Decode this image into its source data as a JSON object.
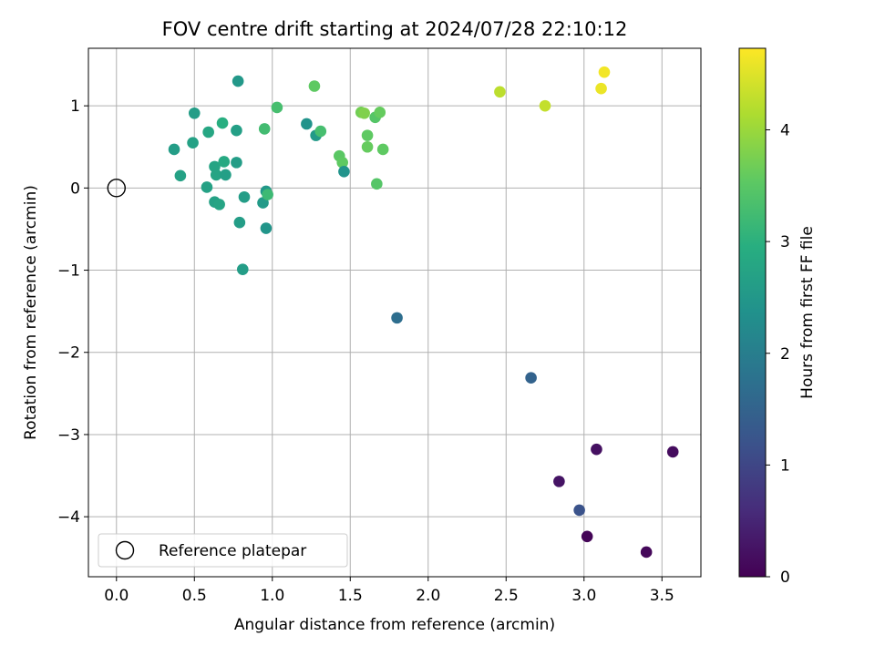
{
  "chart_data": {
    "type": "scatter",
    "title": "FOV centre drift starting at 2024/07/28 22:10:12",
    "xlabel": "Angular distance from reference (arcmin)",
    "ylabel": "Rotation from reference (arcmin)",
    "xlim": [
      -0.18,
      3.75
    ],
    "ylim": [
      -4.73,
      1.7
    ],
    "x_ticks": [
      0.0,
      0.5,
      1.0,
      1.5,
      2.0,
      2.5,
      3.0,
      3.5
    ],
    "x_tick_labels": [
      "0.0",
      "0.5",
      "1.0",
      "1.5",
      "2.0",
      "2.5",
      "3.0",
      "3.5"
    ],
    "y_ticks": [
      1,
      0,
      -1,
      -2,
      -3,
      -4
    ],
    "y_tick_labels": [
      "1",
      "0",
      "−1",
      "−2",
      "−3",
      "−4"
    ],
    "grid": true,
    "legend": {
      "position": "lower-left",
      "entries": [
        "Reference platepar"
      ]
    },
    "reference_point": {
      "x": 0,
      "y": 0,
      "marker": "open-circle"
    },
    "colorbar": {
      "label": "Hours from first FF file",
      "colormap": "viridis",
      "range": [
        0,
        4.73
      ],
      "ticks": [
        0,
        1,
        2,
        3,
        4
      ],
      "tick_labels": [
        "0",
        "1",
        "2",
        "3",
        "4"
      ]
    },
    "points": [
      {
        "x": 3.02,
        "y": -4.24,
        "c": 0.05
      },
      {
        "x": 3.4,
        "y": -4.43,
        "c": 0.1
      },
      {
        "x": 3.57,
        "y": -3.21,
        "c": 0.15
      },
      {
        "x": 3.08,
        "y": -3.18,
        "c": 0.2
      },
      {
        "x": 2.84,
        "y": -3.57,
        "c": 0.25
      },
      {
        "x": 2.97,
        "y": -3.92,
        "c": 1.2
      },
      {
        "x": 2.66,
        "y": -2.31,
        "c": 1.5
      },
      {
        "x": 1.8,
        "y": -1.58,
        "c": 1.7
      },
      {
        "x": 0.78,
        "y": 1.3,
        "c": 2.5
      },
      {
        "x": 0.5,
        "y": 0.91,
        "c": 2.6
      },
      {
        "x": 0.37,
        "y": 0.47,
        "c": 2.6
      },
      {
        "x": 0.41,
        "y": 0.15,
        "c": 2.7
      },
      {
        "x": 0.49,
        "y": 0.55,
        "c": 2.7
      },
      {
        "x": 0.59,
        "y": 0.68,
        "c": 2.8
      },
      {
        "x": 0.58,
        "y": 0.01,
        "c": 2.7
      },
      {
        "x": 0.63,
        "y": 0.26,
        "c": 2.75
      },
      {
        "x": 0.64,
        "y": 0.16,
        "c": 2.75
      },
      {
        "x": 0.69,
        "y": 0.32,
        "c": 2.85
      },
      {
        "x": 0.7,
        "y": 0.16,
        "c": 2.65
      },
      {
        "x": 0.63,
        "y": -0.17,
        "c": 2.7
      },
      {
        "x": 0.66,
        "y": -0.2,
        "c": 2.75
      },
      {
        "x": 0.68,
        "y": 0.79,
        "c": 2.95
      },
      {
        "x": 0.77,
        "y": 0.7,
        "c": 2.65
      },
      {
        "x": 0.77,
        "y": 0.31,
        "c": 2.6
      },
      {
        "x": 0.79,
        "y": -0.42,
        "c": 2.6
      },
      {
        "x": 0.82,
        "y": -0.11,
        "c": 2.6
      },
      {
        "x": 0.81,
        "y": -0.99,
        "c": 2.6
      },
      {
        "x": 0.94,
        "y": -0.18,
        "c": 2.55
      },
      {
        "x": 0.96,
        "y": -0.04,
        "c": 2.5
      },
      {
        "x": 0.96,
        "y": -0.49,
        "c": 2.45
      },
      {
        "x": 0.97,
        "y": -0.08,
        "c": 3.2
      },
      {
        "x": 0.95,
        "y": 0.72,
        "c": 3.25
      },
      {
        "x": 1.03,
        "y": 0.98,
        "c": 3.3
      },
      {
        "x": 1.22,
        "y": 0.78,
        "c": 2.4
      },
      {
        "x": 1.28,
        "y": 0.64,
        "c": 2.55
      },
      {
        "x": 1.31,
        "y": 0.69,
        "c": 3.3
      },
      {
        "x": 1.27,
        "y": 1.24,
        "c": 3.55
      },
      {
        "x": 1.43,
        "y": 0.39,
        "c": 3.5
      },
      {
        "x": 1.45,
        "y": 0.31,
        "c": 3.55
      },
      {
        "x": 1.46,
        "y": 0.2,
        "c": 2.4
      },
      {
        "x": 1.57,
        "y": 0.92,
        "c": 3.7
      },
      {
        "x": 1.59,
        "y": 0.91,
        "c": 3.8
      },
      {
        "x": 1.61,
        "y": 0.64,
        "c": 3.55
      },
      {
        "x": 1.61,
        "y": 0.5,
        "c": 3.6
      },
      {
        "x": 1.66,
        "y": 0.86,
        "c": 3.45
      },
      {
        "x": 1.69,
        "y": 0.92,
        "c": 3.6
      },
      {
        "x": 1.71,
        "y": 0.47,
        "c": 3.55
      },
      {
        "x": 1.67,
        "y": 0.05,
        "c": 3.45
      },
      {
        "x": 2.46,
        "y": 1.17,
        "c": 4.25
      },
      {
        "x": 2.75,
        "y": 1.0,
        "c": 4.3
      },
      {
        "x": 3.11,
        "y": 1.21,
        "c": 4.6
      },
      {
        "x": 3.13,
        "y": 1.41,
        "c": 4.65
      }
    ]
  }
}
